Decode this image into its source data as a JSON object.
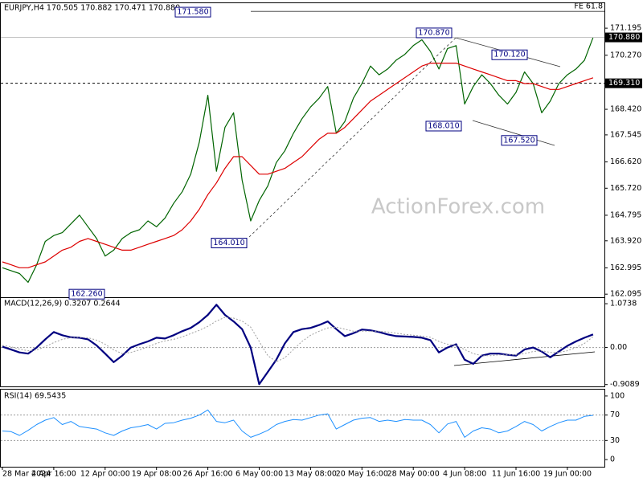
{
  "chart_data": [
    {
      "type": "line",
      "title": "EURJPY,H4  170.505 170.882 170.471 170.880",
      "watermark": "ActionForex.com",
      "categories": [
        "28 Mar 2024",
        null,
        null,
        null,
        null,
        null,
        "4 Apr 16:00",
        null,
        null,
        null,
        null,
        null,
        "12 Apr 00:00",
        null,
        null,
        null,
        null,
        null,
        "19 Apr 08:00",
        null,
        null,
        null,
        null,
        null,
        "26 Apr 16:00",
        null,
        null,
        null,
        null,
        null,
        "6 May 00:00",
        null,
        null,
        null,
        null,
        null,
        "13 May 08:00",
        null,
        null,
        null,
        null,
        null,
        "20 May 16:00",
        null,
        null,
        null,
        null,
        null,
        "28 May 00:00",
        null,
        null,
        null,
        null,
        null,
        "4 Jun 08:00",
        null,
        null,
        null,
        null,
        null,
        "11 Jun 16:00",
        null,
        null,
        null,
        null,
        null,
        "19 Jun 00:00",
        null,
        null,
        null
      ],
      "ylim": [
        161.99,
        171.94
      ],
      "yticks": [
        171.195,
        {
          "value": 170.27,
          "label": "170.270"
        },
        {
          "value": 168.42,
          "label": "168.420"
        },
        167.545,
        {
          "value": 166.62,
          "label": "166.620"
        },
        {
          "value": 165.72,
          "label": "165.720"
        },
        164.795,
        {
          "value": 163.92,
          "label": "163.920"
        },
        162.995,
        162.095
      ],
      "current": {
        "value": 170.88,
        "label": "170.880"
      },
      "level": {
        "value": 169.31,
        "label": "169.310"
      },
      "fe_level": {
        "value": 171.77,
        "label": "FE 61.8"
      },
      "annotations": [
        {
          "value": 171.58,
          "label": "171.580"
        },
        {
          "value": 170.87,
          "label": "170.870"
        },
        {
          "value": 170.12,
          "label": "170.120"
        },
        {
          "value": 168.01,
          "label": "168.010"
        },
        {
          "value": 167.52,
          "label": "167.520"
        },
        {
          "value": 164.01,
          "label": "164.010"
        },
        {
          "value": 162.26,
          "label": "162.260"
        }
      ],
      "series": [
        {
          "color": "#006400",
          "width": 1.2,
          "values": [
            163.0,
            162.9,
            162.8,
            162.5,
            163.1,
            163.9,
            164.1,
            164.2,
            164.5,
            164.8,
            164.4,
            164.0,
            163.4,
            163.6,
            164.0,
            164.2,
            164.3,
            164.6,
            164.4,
            164.7,
            165.2,
            165.6,
            166.2,
            167.3,
            168.9,
            166.3,
            167.8,
            168.3,
            166.0,
            164.6,
            165.3,
            165.8,
            166.6,
            167.0,
            167.6,
            168.1,
            168.5,
            168.8,
            169.2,
            167.6,
            168.0,
            168.8,
            169.3,
            169.9,
            169.6,
            169.8,
            170.1,
            170.3,
            170.6,
            170.8,
            170.4,
            169.8,
            170.5,
            170.6,
            168.6,
            169.2,
            169.6,
            169.3,
            168.9,
            168.6,
            169.0,
            169.7,
            169.3,
            168.3,
            168.7,
            169.3,
            169.6,
            169.8,
            170.1,
            170.88
          ]
        },
        {
          "color": "#dd0000",
          "width": 1.2,
          "values": [
            163.2,
            163.1,
            163.0,
            163.0,
            163.1,
            163.2,
            163.4,
            163.6,
            163.7,
            163.9,
            164.0,
            163.9,
            163.8,
            163.7,
            163.6,
            163.6,
            163.7,
            163.8,
            163.9,
            164.0,
            164.1,
            164.3,
            164.6,
            165.0,
            165.5,
            165.9,
            166.4,
            166.8,
            166.8,
            166.5,
            166.2,
            166.2,
            166.3,
            166.4,
            166.6,
            166.8,
            167.1,
            167.4,
            167.6,
            167.6,
            167.8,
            168.1,
            168.4,
            168.7,
            168.9,
            169.1,
            169.3,
            169.5,
            169.7,
            169.9,
            170.0,
            170.0,
            170.0,
            170.0,
            169.9,
            169.8,
            169.7,
            169.6,
            169.5,
            169.4,
            169.4,
            169.3,
            169.3,
            169.2,
            169.1,
            169.1,
            169.2,
            169.3,
            169.4,
            169.5
          ]
        }
      ]
    },
    {
      "type": "line",
      "title": "MACD(12,26,9) 0.3207 0.2644",
      "ylim": [
        -0.954,
        1.193
      ],
      "yticks": [
        1.0738,
        {
          "value": 0,
          "label": "0.00"
        },
        -0.9089
      ],
      "levels": [
        0
      ],
      "series": [
        {
          "color": "#000080",
          "width": 2.2,
          "values": [
            0.02,
            -0.05,
            -0.12,
            -0.15,
            0.0,
            0.2,
            0.38,
            0.3,
            0.25,
            0.24,
            0.2,
            0.05,
            -0.15,
            -0.36,
            -0.2,
            0.0,
            0.08,
            0.15,
            0.24,
            0.22,
            0.3,
            0.4,
            0.48,
            0.62,
            0.8,
            1.05,
            0.8,
            0.64,
            0.45,
            0.0,
            -0.9,
            -0.6,
            -0.3,
            0.1,
            0.38,
            0.45,
            0.48,
            0.55,
            0.64,
            0.45,
            0.28,
            0.35,
            0.44,
            0.42,
            0.38,
            0.32,
            0.28,
            0.27,
            0.26,
            0.24,
            0.18,
            -0.12,
            0.0,
            0.08,
            -0.3,
            -0.4,
            -0.2,
            -0.15,
            -0.15,
            -0.18,
            -0.2,
            -0.05,
            0.0,
            -0.1,
            -0.24,
            -0.1,
            0.04,
            0.15,
            0.24,
            0.3207
          ]
        },
        {
          "color": "#a0a0a0",
          "width": 1,
          "dash": true,
          "values": [
            0.05,
            0.02,
            -0.04,
            -0.08,
            -0.06,
            0.02,
            0.12,
            0.2,
            0.24,
            0.25,
            0.24,
            0.18,
            0.08,
            -0.06,
            -0.15,
            -0.12,
            -0.06,
            0.02,
            0.1,
            0.16,
            0.2,
            0.26,
            0.34,
            0.42,
            0.52,
            0.65,
            0.74,
            0.72,
            0.65,
            0.5,
            0.15,
            -0.2,
            -0.35,
            -0.25,
            -0.05,
            0.15,
            0.3,
            0.4,
            0.48,
            0.5,
            0.45,
            0.4,
            0.4,
            0.4,
            0.4,
            0.38,
            0.35,
            0.32,
            0.3,
            0.28,
            0.25,
            0.15,
            0.08,
            0.05,
            -0.05,
            -0.15,
            -0.2,
            -0.2,
            -0.18,
            -0.18,
            -0.18,
            -0.15,
            -0.1,
            -0.08,
            -0.12,
            -0.12,
            -0.08,
            0.0,
            0.1,
            0.2644
          ]
        }
      ]
    },
    {
      "type": "line",
      "title": "RSI(14) 69.5435",
      "ylim": [
        -10,
        110
      ],
      "yticks": [
        100,
        70,
        30,
        0
      ],
      "levels": [
        70,
        30
      ],
      "series": [
        {
          "color": "#1e90ff",
          "width": 1,
          "values": [
            45,
            44,
            38,
            46,
            55,
            62,
            66,
            55,
            60,
            52,
            50,
            48,
            42,
            38,
            45,
            50,
            52,
            55,
            48,
            57,
            58,
            62,
            65,
            70,
            78,
            60,
            58,
            62,
            45,
            35,
            40,
            46,
            55,
            60,
            63,
            62,
            66,
            70,
            72,
            48,
            55,
            62,
            65,
            66,
            60,
            62,
            60,
            63,
            62,
            62,
            55,
            42,
            56,
            60,
            35,
            45,
            50,
            48,
            42,
            45,
            52,
            60,
            55,
            45,
            52,
            58,
            62,
            62,
            68,
            69.5435
          ]
        }
      ]
    }
  ]
}
